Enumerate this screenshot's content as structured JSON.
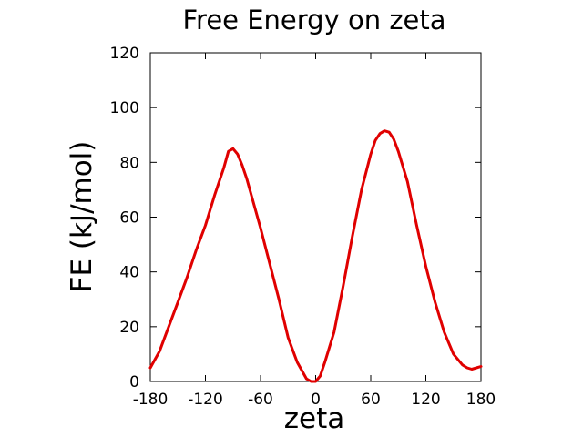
{
  "chart_data": {
    "type": "line",
    "title": "Free Energy on zeta",
    "xlabel": "zeta",
    "ylabel": "FE (kJ/mol)",
    "xlim": [
      -180,
      180
    ],
    "ylim": [
      0,
      120
    ],
    "xticks": [
      "-180",
      "-120",
      "-60",
      "0",
      "60",
      "120",
      "180"
    ],
    "yticks": [
      "0",
      "20",
      "40",
      "60",
      "80",
      "100",
      "120"
    ],
    "grid": false,
    "series": [
      {
        "color": "#e00000",
        "x": [
          -180,
          -170,
          -160,
          -150,
          -140,
          -130,
          -120,
          -110,
          -100,
          -95,
          -90,
          -85,
          -80,
          -75,
          -70,
          -60,
          -50,
          -40,
          -30,
          -20,
          -10,
          -5,
          0,
          5,
          10,
          20,
          30,
          40,
          50,
          60,
          65,
          70,
          75,
          80,
          85,
          90,
          100,
          110,
          120,
          130,
          140,
          150,
          160,
          165,
          170,
          175,
          180
        ],
        "values": [
          5,
          11,
          20,
          29,
          38,
          48,
          57,
          68,
          78,
          84,
          85,
          83,
          79,
          74,
          68,
          56,
          43,
          30,
          16,
          7,
          1,
          0,
          0,
          2,
          7,
          18,
          35,
          53,
          70,
          83,
          88,
          90.5,
          91.5,
          91,
          88.5,
          84,
          73,
          57,
          42,
          29,
          18,
          10,
          6,
          5,
          4.5,
          5,
          5.5
        ]
      }
    ]
  }
}
